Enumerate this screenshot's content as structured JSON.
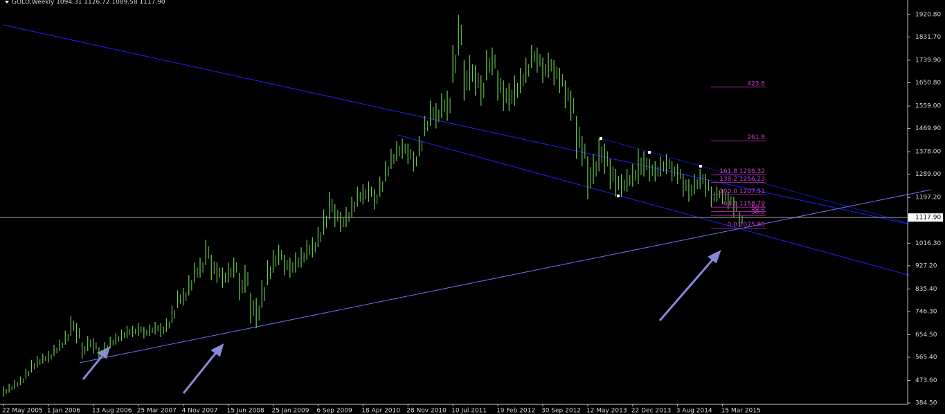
{
  "chart_data": {
    "type": "ohlc",
    "title": "GOLD,Weekly  1094.31 1126.72 1089.58 1117.90",
    "color": "#6fcf4f",
    "categories": [
      "22 May 2005",
      null,
      null,
      null,
      null,
      null,
      null,
      null,
      "1 Jan 2006",
      null,
      null,
      null,
      null,
      null,
      null,
      null,
      "13 Aug 2006",
      null,
      null,
      null,
      null,
      null,
      null,
      null,
      "25 Mar 2007",
      null,
      null,
      null,
      null,
      null,
      null,
      null,
      "4 Nov 2007",
      null,
      null,
      null,
      null,
      null,
      null,
      null,
      "15 Jun 2008",
      null,
      null,
      null,
      null,
      null,
      null,
      null,
      "25 Jan 2009",
      null,
      null,
      null,
      null,
      null,
      null,
      null,
      "6 Sep 2009",
      null,
      null,
      null,
      null,
      null,
      null,
      null,
      "18 Apr 2010",
      null,
      null,
      null,
      null,
      null,
      null,
      null,
      "28 Nov 2010",
      null,
      null,
      null,
      null,
      null,
      null,
      null,
      "10 Jul 2011",
      null,
      null,
      null,
      null,
      null,
      null,
      null,
      "19 Feb 2012",
      null,
      null,
      null,
      null,
      null,
      null,
      null,
      "30 Sep 2012",
      null,
      null,
      null,
      null,
      null,
      null,
      null,
      "12 May 2013",
      null,
      null,
      null,
      null,
      null,
      null,
      null,
      "22 Dec 2013",
      null,
      null,
      null,
      null,
      null,
      null,
      null,
      "3 Aug 2014",
      null,
      null,
      null,
      null,
      null,
      null,
      null,
      "15 Mar 2015",
      null,
      null,
      null
    ],
    "high": [
      450,
      460,
      475,
      490,
      520,
      555,
      570,
      580,
      590,
      615,
      635,
      670,
      730,
      700,
      625,
      650,
      640,
      605,
      625,
      645,
      660,
      675,
      690,
      690,
      700,
      685,
      695,
      705,
      700,
      720,
      770,
      830,
      840,
      890,
      940,
      960,
      1030,
      970,
      940,
      920,
      940,
      960,
      900,
      930,
      820,
      800,
      870,
      950,
      990,
      1010,
      970,
      960,
      980,
      1000,
      1030,
      1040,
      1080,
      1150,
      1220,
      1170,
      1140,
      1160,
      1200,
      1240,
      1250,
      1260,
      1230,
      1280,
      1340,
      1390,
      1420,
      1430,
      1410,
      1380,
      1440,
      1520,
      1580,
      1570,
      1610,
      1620,
      1800,
      1920,
      1740,
      1760,
      1720,
      1680,
      1780,
      1790,
      1700,
      1660,
      1650,
      1680,
      1710,
      1750,
      1800,
      1790,
      1750,
      1770,
      1740,
      1710,
      1660,
      1620,
      1520,
      1440,
      1360,
      1370,
      1430,
      1410,
      1350,
      1310,
      1290,
      1310,
      1330,
      1390,
      1380,
      1350,
      1340,
      1360,
      1370,
      1340,
      1330,
      1290,
      1270,
      1290,
      1310,
      1290,
      1240,
      1240,
      1230,
      1220,
      1200,
      1140
    ],
    "low": [
      410,
      425,
      440,
      455,
      480,
      505,
      525,
      540,
      545,
      570,
      590,
      615,
      650,
      620,
      560,
      590,
      580,
      560,
      580,
      600,
      615,
      630,
      640,
      645,
      650,
      640,
      650,
      655,
      645,
      665,
      700,
      760,
      770,
      810,
      860,
      880,
      930,
      870,
      860,
      840,
      860,
      880,
      790,
      820,
      700,
      680,
      760,
      850,
      900,
      930,
      890,
      880,
      900,
      920,
      950,
      960,
      1000,
      1050,
      1110,
      1080,
      1060,
      1080,
      1120,
      1160,
      1170,
      1180,
      1150,
      1200,
      1260,
      1310,
      1340,
      1350,
      1330,
      1300,
      1360,
      1440,
      1480,
      1470,
      1510,
      1500,
      1650,
      1760,
      1580,
      1620,
      1600,
      1560,
      1660,
      1680,
      1580,
      1540,
      1540,
      1560,
      1610,
      1650,
      1710,
      1690,
      1650,
      1670,
      1640,
      1610,
      1550,
      1500,
      1350,
      1320,
      1190,
      1250,
      1300,
      1290,
      1230,
      1200,
      1200,
      1220,
      1240,
      1250,
      1280,
      1260,
      1260,
      1280,
      1290,
      1260,
      1250,
      1200,
      1180,
      1210,
      1230,
      1200,
      1160,
      1180,
      1170,
      1150,
      1120,
      1080
    ],
    "ylim": [
      382,
      1978
    ],
    "yticks": [
      {
        "value": 1920.8,
        "label": "1920.80"
      },
      {
        "value": 1831.7,
        "label": "1831.70"
      },
      {
        "value": 1739.9,
        "label": "1739.90"
      },
      {
        "value": 1650.8,
        "label": "1650.80"
      },
      {
        "value": 1559,
        "label": "1559.00"
      },
      {
        "value": 1469.9,
        "label": "1469.90"
      },
      {
        "value": 1378,
        "label": "1378.00"
      },
      {
        "value": 1289,
        "label": "1289.00"
      },
      {
        "value": 1197.2,
        "label": "1197.20"
      },
      {
        "value": 1016.3,
        "label": "1016.30"
      },
      {
        "value": 927.2,
        "label": "927.20"
      },
      {
        "value": 835.4,
        "label": "835.40"
      },
      {
        "value": 746.3,
        "label": "746.30"
      },
      {
        "value": 654.5,
        "label": "654.50"
      },
      {
        "value": 565.4,
        "label": "565.40"
      },
      {
        "value": 473.6,
        "label": "473.60"
      },
      {
        "value": 384.5,
        "label": "384.50"
      }
    ],
    "current_price": {
      "value": 1117.9,
      "label": "1117.90"
    },
    "fibonacci": [
      {
        "value": 1633.7,
        "label": "423.6"
      },
      {
        "value": 1420.6,
        "label": "261.8"
      },
      {
        "value": 1286.32,
        "label": "161.8  1286.32"
      },
      {
        "value": 1256.23,
        "label": "138.2  1256.23"
      },
      {
        "value": 1207.51,
        "label": "100.0  1207.51"
      },
      {
        "value": 1158.79,
        "label": "61.8  1158.79"
      },
      {
        "value": 1141.66,
        "label": "50.0"
      },
      {
        "value": 1126.11,
        "label": "38.2"
      },
      {
        "value": 1075.8,
        "label": "0.0  1075.80"
      }
    ]
  }
}
